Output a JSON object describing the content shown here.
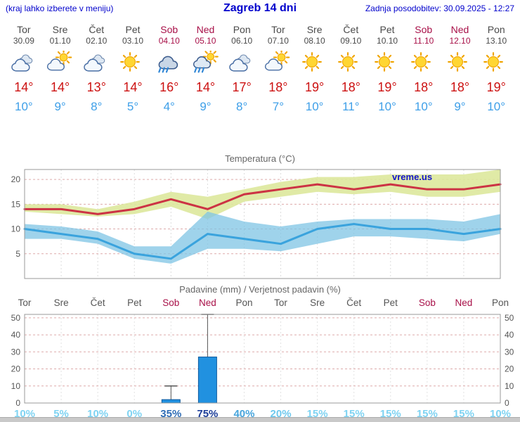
{
  "header": {
    "left_note": "(kraj lahko izberete v meniju)",
    "title": "Zagreb 14 dni",
    "last_update": "Zadnja posodobitev: 30.09.2025 - 12:27"
  },
  "colors": {
    "header_blue": "#0000cc",
    "weekend": "#a81048",
    "weekday": "#4a4a4a",
    "high_temp": "#cc1111",
    "low_temp": "#3e9fe8"
  },
  "forecast": {
    "days": [
      {
        "name": "Tor",
        "date": "30.09",
        "icon": "cloudy",
        "high": "14°",
        "low": "10°",
        "weekend": false
      },
      {
        "name": "Sre",
        "date": "01.10",
        "icon": "partly-cloudy",
        "high": "14°",
        "low": "9°",
        "weekend": false
      },
      {
        "name": "Čet",
        "date": "02.10",
        "icon": "cloudy",
        "high": "13°",
        "low": "8°",
        "weekend": false
      },
      {
        "name": "Pet",
        "date": "03.10",
        "icon": "sunny",
        "high": "14°",
        "low": "5°",
        "weekend": false
      },
      {
        "name": "Sob",
        "date": "04.10",
        "icon": "rain",
        "high": "16°",
        "low": "4°",
        "weekend": true
      },
      {
        "name": "Ned",
        "date": "05.10",
        "icon": "rain-sun",
        "high": "14°",
        "low": "9°",
        "weekend": true
      },
      {
        "name": "Pon",
        "date": "06.10",
        "icon": "cloudy",
        "high": "17°",
        "low": "8°",
        "weekend": false
      },
      {
        "name": "Tor",
        "date": "07.10",
        "icon": "partly-cloudy",
        "high": "18°",
        "low": "7°",
        "weekend": false
      },
      {
        "name": "Sre",
        "date": "08.10",
        "icon": "sunny",
        "high": "19°",
        "low": "10°",
        "weekend": false
      },
      {
        "name": "Čet",
        "date": "09.10",
        "icon": "sunny",
        "high": "18°",
        "low": "11°",
        "weekend": false
      },
      {
        "name": "Pet",
        "date": "10.10",
        "icon": "sunny",
        "high": "19°",
        "low": "10°",
        "weekend": false
      },
      {
        "name": "Sob",
        "date": "11.10",
        "icon": "sunny",
        "high": "18°",
        "low": "10°",
        "weekend": true
      },
      {
        "name": "Ned",
        "date": "12.10",
        "icon": "sunny",
        "high": "18°",
        "low": "9°",
        "weekend": true
      },
      {
        "name": "Pon",
        "date": "13.10",
        "icon": "sunny",
        "high": "19°",
        "low": "10°",
        "weekend": false
      }
    ]
  },
  "chart_data": [
    {
      "type": "line",
      "title": "Temperatura (°C)",
      "watermark": "vreme.us",
      "ylim": [
        0,
        22
      ],
      "yticks": [
        5,
        10,
        15,
        20
      ],
      "grid": true,
      "series": [
        {
          "name": "max-temp",
          "color": "#cc3344",
          "values": [
            14,
            14,
            13,
            14,
            16,
            14,
            17,
            18,
            19,
            18,
            19,
            18,
            18,
            19
          ]
        },
        {
          "name": "min-temp",
          "color": "#3aa3dd",
          "values": [
            10,
            9,
            8,
            5,
            4,
            9,
            8,
            7,
            10,
            11,
            10,
            10,
            9,
            10
          ]
        }
      ],
      "bands": [
        {
          "name": "max-temp-range",
          "color": "#dde89c",
          "opacity": 0.9,
          "upper": [
            15,
            15,
            14,
            15.5,
            17.5,
            16.5,
            18,
            19.5,
            20.5,
            20.5,
            21,
            21,
            21,
            22
          ],
          "lower": [
            13.5,
            13,
            12.5,
            13,
            14.5,
            12,
            15.5,
            16.5,
            17.5,
            17,
            17.5,
            16.5,
            16.5,
            17.5
          ]
        },
        {
          "name": "min-temp-range",
          "color": "#7fc4e4",
          "opacity": 0.75,
          "upper": [
            11,
            10.5,
            9.5,
            6.5,
            6.5,
            13.5,
            11.5,
            10.5,
            11.5,
            12,
            12,
            12,
            11.5,
            13
          ],
          "lower": [
            8,
            8,
            7,
            4,
            3,
            6,
            6,
            5.5,
            7,
            8.5,
            8.5,
            8,
            7.5,
            9
          ]
        }
      ]
    },
    {
      "type": "bar",
      "title": "Padavine (mm) / Verjetnost padavin (%)",
      "categories": [
        "Tor",
        "Sre",
        "Čet",
        "Pet",
        "Sob",
        "Ned",
        "Pon",
        "Tor",
        "Sre",
        "Čet",
        "Pet",
        "Sob",
        "Ned",
        "Pon"
      ],
      "weekend_flags": [
        false,
        false,
        false,
        false,
        true,
        true,
        false,
        false,
        false,
        false,
        false,
        true,
        true,
        false
      ],
      "ylim": [
        0,
        52
      ],
      "yticks": [
        0,
        10,
        20,
        30,
        40,
        50
      ],
      "ylabel_left": "mm",
      "ylabel_right": "mm",
      "bar_color": "#2191e0",
      "values": [
        0,
        0,
        0,
        0,
        2,
        27,
        0,
        0,
        0,
        0,
        0,
        0,
        0,
        0
      ],
      "whisker_high": [
        null,
        null,
        null,
        null,
        10,
        52,
        null,
        null,
        null,
        null,
        null,
        null,
        null,
        null
      ],
      "probabilities": [
        {
          "label": "10%",
          "color": "#7fd3f2"
        },
        {
          "label": "5%",
          "color": "#7fd3f2"
        },
        {
          "label": "10%",
          "color": "#7fd3f2"
        },
        {
          "label": "0%",
          "color": "#7fd3f2"
        },
        {
          "label": "35%",
          "color": "#2e6cb5"
        },
        {
          "label": "75%",
          "color": "#1d3e99"
        },
        {
          "label": "40%",
          "color": "#46a4dc"
        },
        {
          "label": "20%",
          "color": "#6fc9ee"
        },
        {
          "label": "15%",
          "color": "#7fd3f2"
        },
        {
          "label": "15%",
          "color": "#7fd3f2"
        },
        {
          "label": "15%",
          "color": "#7fd3f2"
        },
        {
          "label": "15%",
          "color": "#7fd3f2"
        },
        {
          "label": "15%",
          "color": "#7fd3f2"
        },
        {
          "label": "10%",
          "color": "#7fd3f2"
        }
      ]
    }
  ]
}
